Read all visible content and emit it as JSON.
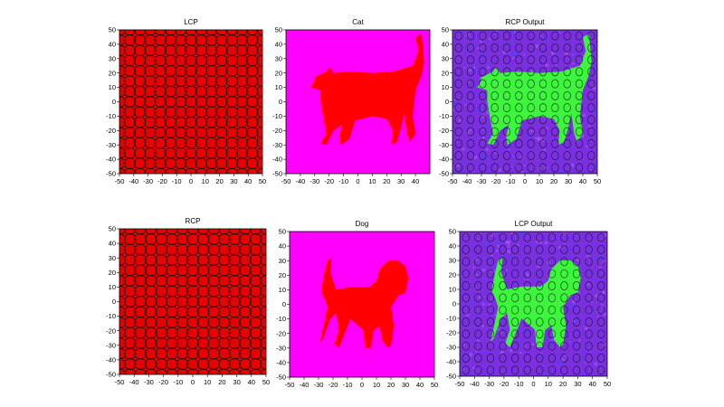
{
  "colors": {
    "polarizer_fill": "#e80000",
    "ring_stroke": "#111111",
    "silhouette_bg": "#ff00ff",
    "silhouette_fg": "#ff0000",
    "output_bg": "#7a2fe0",
    "output_fg": "#3cf53c"
  },
  "chart_data": [
    {
      "type": "heatmap",
      "title": "LCP",
      "content": "polarizer",
      "xlim": [
        -50,
        50
      ],
      "ylim": [
        -50,
        50
      ],
      "x_ticks": [
        -50,
        -40,
        -30,
        -20,
        -10,
        0,
        10,
        20,
        30,
        40,
        50
      ],
      "y_ticks": [
        50,
        40,
        30,
        20,
        10,
        0,
        -10,
        -20,
        -30,
        -40,
        -50
      ]
    },
    {
      "type": "heatmap",
      "title": "Cat",
      "content": "cat-silhouette",
      "xlim": [
        -50,
        50
      ],
      "ylim": [
        -50,
        50
      ],
      "x_ticks": [
        -50,
        -40,
        -30,
        -20,
        -10,
        0,
        10,
        20,
        30,
        40
      ],
      "y_ticks": [
        50,
        40,
        30,
        20,
        10,
        0,
        -10,
        -20,
        -30,
        -40,
        -50
      ]
    },
    {
      "type": "heatmap",
      "title": "RCP Output",
      "content": "cat-output",
      "xlim": [
        -50,
        50
      ],
      "ylim": [
        -50,
        50
      ],
      "x_ticks": [
        -50,
        -40,
        -30,
        -20,
        -10,
        0,
        10,
        20,
        30,
        40,
        50
      ],
      "y_ticks": [
        50,
        40,
        30,
        20,
        10,
        0,
        -10,
        -20,
        -30,
        -40,
        -50
      ]
    },
    {
      "type": "heatmap",
      "title": "RCP",
      "content": "polarizer",
      "xlim": [
        -50,
        50
      ],
      "ylim": [
        -50,
        50
      ],
      "x_ticks": [
        -50,
        -40,
        -30,
        -20,
        -10,
        0,
        10,
        20,
        30,
        40,
        50
      ],
      "y_ticks": [
        50,
        40,
        30,
        20,
        10,
        0,
        -10,
        -20,
        -30,
        -40,
        -50
      ]
    },
    {
      "type": "heatmap",
      "title": "Dog",
      "content": "dog-silhouette",
      "xlim": [
        -50,
        50
      ],
      "ylim": [
        -50,
        50
      ],
      "x_ticks": [
        -50,
        -40,
        -30,
        -20,
        -10,
        0,
        10,
        20,
        30,
        40,
        50
      ],
      "y_ticks": [
        50,
        40,
        30,
        20,
        10,
        0,
        -10,
        -20,
        -30,
        -40,
        -50
      ]
    },
    {
      "type": "heatmap",
      "title": "LCP Output",
      "content": "dog-output",
      "xlim": [
        -50,
        50
      ],
      "ylim": [
        -50,
        50
      ],
      "x_ticks": [
        -50,
        -40,
        -30,
        -20,
        -10,
        0,
        10,
        20,
        30,
        40,
        50
      ],
      "y_ticks": [
        50,
        40,
        30,
        20,
        10,
        0,
        -10,
        -20,
        -30,
        -40,
        -50
      ]
    }
  ]
}
